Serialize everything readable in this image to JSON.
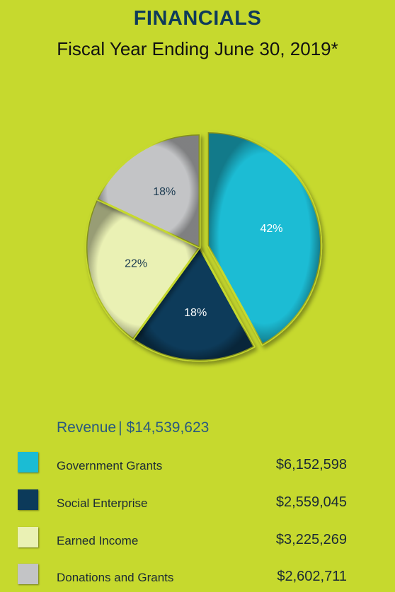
{
  "chart_data": {
    "type": "pie",
    "title": "FINANCIALS",
    "subtitle": "Fiscal Year Ending June 30, 2019*",
    "total_label": "Revenue",
    "total_value": "$14,539,623",
    "slices": [
      {
        "label": "Government Grants",
        "percent": 42,
        "percent_label": "42%",
        "amount": "$6,152,598",
        "color": "#1bbcd4",
        "label_color": "#ffffff",
        "exploded": true
      },
      {
        "label": "Social Enterprise",
        "percent": 18,
        "percent_label": "18%",
        "amount": "$2,559,045",
        "color": "#0c3a5a",
        "label_color": "#ffffff",
        "exploded": false
      },
      {
        "label": "Earned Income",
        "percent": 22,
        "percent_label": "22%",
        "amount": "$3,225,269",
        "color": "#eaf1b4",
        "label_color": "#1b3a50",
        "exploded": false
      },
      {
        "label": "Donations and Grants",
        "percent": 18,
        "percent_label": "18%",
        "amount": "$2,602,711",
        "color": "#c3c4c6",
        "label_color": "#1b3a50",
        "exploded": false
      }
    ],
    "background": "#c6d92e"
  }
}
